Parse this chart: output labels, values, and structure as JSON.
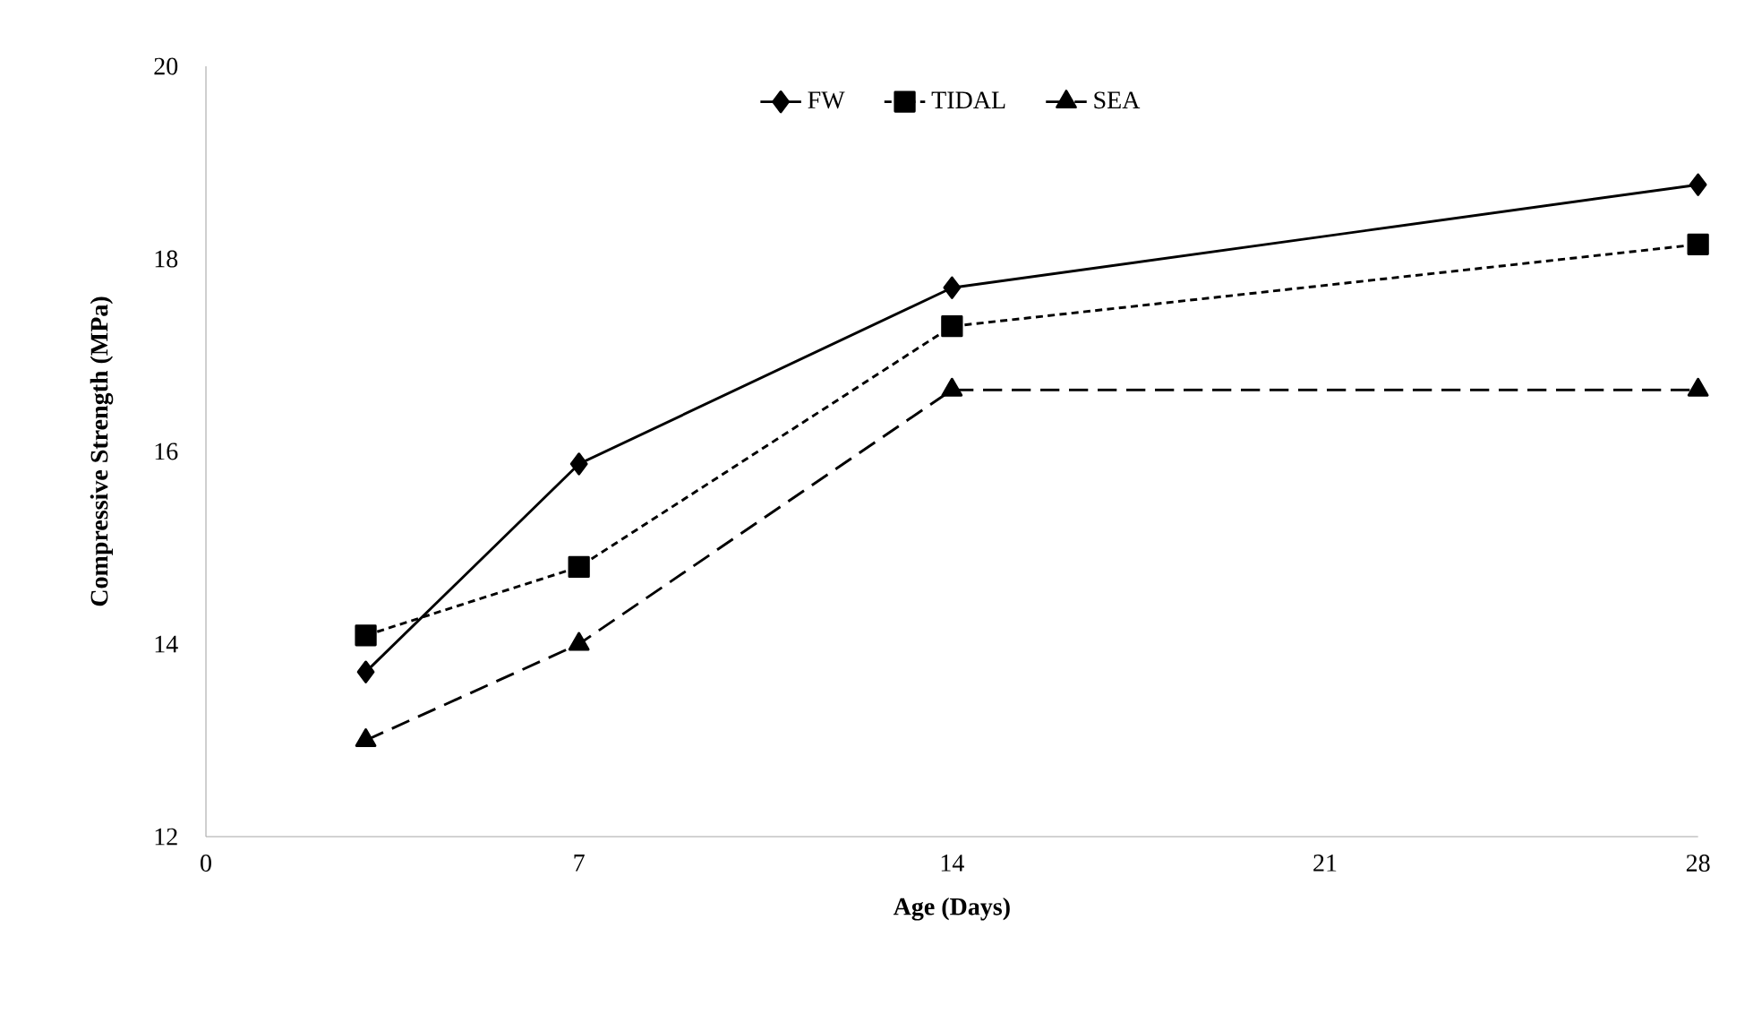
{
  "chart_data": {
    "type": "line",
    "xlabel": "Age (Days)",
    "ylabel": "Compressive Strength (MPa)",
    "x": [
      3,
      7,
      14,
      28
    ],
    "series": [
      {
        "name": "FW",
        "color": "#000000",
        "marker": "diamond",
        "line_style": "solid",
        "values": [
          13.71,
          15.87,
          17.7,
          18.77
        ]
      },
      {
        "name": "TIDAL",
        "color": "#000000",
        "marker": "square",
        "line_style": "dotted",
        "values": [
          14.09,
          14.8,
          17.3,
          18.15
        ]
      },
      {
        "name": "SEA",
        "color": "#000000",
        "marker": "triangle",
        "line_style": "dashed",
        "values": [
          13.0,
          14.0,
          16.64,
          16.64
        ]
      }
    ],
    "xlim": [
      0,
      28
    ],
    "xticks": [
      0,
      7,
      14,
      21,
      28
    ],
    "ylim": [
      12,
      20
    ],
    "yticks": [
      12,
      14,
      16,
      18,
      20
    ],
    "grid": false,
    "legend": "top"
  }
}
